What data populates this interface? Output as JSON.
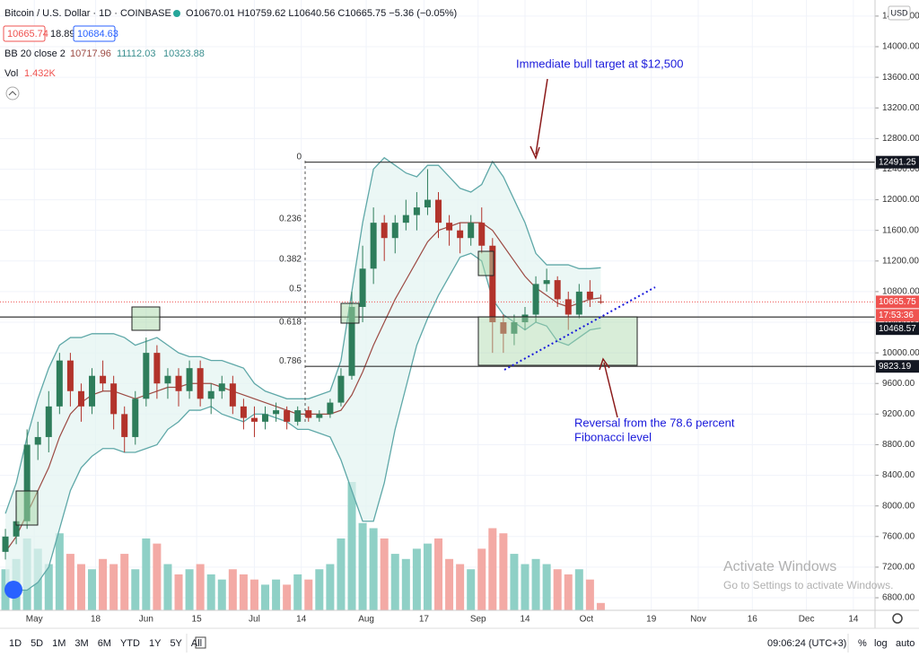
{
  "header": {
    "title": "Bitcoin / U.S. Dollar · 1D · COINBASE",
    "ohlc_text": "O10670.01 H10759.62 L10640.56 C10665.75 −5.36 (−0.05%)",
    "bid": 10665.74,
    "spread": 18.89,
    "ask": 10684.63
  },
  "chart_data": {
    "type": "candlestick",
    "currency": "USD",
    "x": [
      -8,
      -5,
      -2,
      1,
      4,
      7,
      10,
      13,
      16,
      19,
      22,
      25,
      28,
      31,
      34,
      37,
      40,
      43,
      46,
      49,
      52,
      55,
      58,
      61,
      64,
      67,
      70,
      73,
      76,
      79,
      82,
      85,
      88,
      91,
      94,
      97,
      100,
      103,
      106,
      109,
      112,
      115,
      118,
      121,
      124,
      127,
      130,
      133,
      136,
      139,
      142,
      145,
      148,
      151,
      154,
      157
    ],
    "xlim": [
      -9.5,
      233
    ],
    "xticks": [
      {
        "value": 0,
        "label": "May"
      },
      {
        "value": 17,
        "label": "18"
      },
      {
        "value": 31,
        "label": "Jun"
      },
      {
        "value": 45,
        "label": "15"
      },
      {
        "value": 61,
        "label": "Jul"
      },
      {
        "value": 74,
        "label": "14"
      },
      {
        "value": 92,
        "label": "Aug"
      },
      {
        "value": 108,
        "label": "17"
      },
      {
        "value": 123,
        "label": "Sep"
      },
      {
        "value": 136,
        "label": "14"
      },
      {
        "value": 153,
        "label": "Oct"
      },
      {
        "value": 171,
        "label": "19"
      },
      {
        "value": 184,
        "label": "Nov"
      },
      {
        "value": 199,
        "label": "16"
      },
      {
        "value": 214,
        "label": "Dec"
      },
      {
        "value": 227,
        "label": "14"
      }
    ],
    "ylim": [
      6636,
      14610
    ],
    "yticks": [
      {
        "value": 6800,
        "label": "6800.00"
      },
      {
        "value": 7200,
        "label": "7200.00"
      },
      {
        "value": 7600,
        "label": "7600.00"
      },
      {
        "value": 8000,
        "label": "8000.00"
      },
      {
        "value": 8400,
        "label": "8400.00"
      },
      {
        "value": 8800,
        "label": "8800.00"
      },
      {
        "value": 9200,
        "label": "9200.00"
      },
      {
        "value": 9600,
        "label": "9600.00"
      },
      {
        "value": 10000,
        "label": "10000.00"
      },
      {
        "value": 10400,
        "label": "10400.00"
      },
      {
        "value": 10800,
        "label": "10800.00"
      },
      {
        "value": 11200,
        "label": "11200.00"
      },
      {
        "value": 11600,
        "label": "11600.00"
      },
      {
        "value": 12000,
        "label": "12000.00"
      },
      {
        "value": 12400,
        "label": "12400.00"
      },
      {
        "value": 12800,
        "label": "12800.00"
      },
      {
        "value": 13200,
        "label": "13200.00"
      },
      {
        "value": 13600,
        "label": "13600.00"
      },
      {
        "value": 14000,
        "label": "14000.00"
      },
      {
        "value": 14400,
        "label": "14400.00"
      }
    ],
    "open": [
      7400,
      7600,
      7800,
      8800,
      8900,
      9300,
      9900,
      9500,
      9300,
      9700,
      9600,
      9200,
      8900,
      9400,
      10000,
      9600,
      9700,
      9500,
      9800,
      9400,
      9500,
      9600,
      9300,
      9150,
      9100,
      9200,
      9250,
      9100,
      9250,
      9150,
      9200,
      9350,
      9700,
      10600,
      11100,
      11700,
      11500,
      11700,
      11800,
      11900,
      12000,
      11700,
      11600,
      11500,
      11700,
      11400,
      10400,
      10250,
      10400,
      10500,
      10900,
      10950,
      10700,
      10500,
      10800,
      10670.01
    ],
    "high": [
      7700,
      8000,
      9000,
      9100,
      9500,
      10000,
      10000,
      9600,
      9800,
      9900,
      9700,
      9300,
      9500,
      10200,
      10100,
      9800,
      9800,
      9900,
      9900,
      9600,
      9700,
      9700,
      9400,
      9300,
      9300,
      9350,
      9300,
      9300,
      9300,
      9250,
      9400,
      9800,
      10800,
      11400,
      11900,
      11800,
      11800,
      12000,
      12100,
      12400,
      12100,
      11800,
      11700,
      11800,
      11900,
      11500,
      10500,
      10500,
      10600,
      11000,
      11100,
      11000,
      10800,
      10900,
      10950,
      10759.62
    ],
    "low": [
      7300,
      7500,
      7700,
      8600,
      8700,
      9200,
      9300,
      9100,
      9200,
      9500,
      9000,
      8700,
      8800,
      9300,
      9400,
      9400,
      9300,
      9400,
      9300,
      9200,
      9400,
      9200,
      9000,
      8900,
      9000,
      9100,
      9000,
      9050,
      9100,
      9100,
      9150,
      9300,
      9650,
      10400,
      10900,
      11200,
      11300,
      11600,
      11600,
      11800,
      11500,
      11400,
      11300,
      11400,
      11300,
      10000,
      10000,
      10100,
      10300,
      10400,
      10800,
      10600,
      10300,
      10450,
      10600,
      10640.56
    ],
    "close": [
      7600,
      7800,
      8800,
      8900,
      9300,
      9900,
      9500,
      9300,
      9700,
      9600,
      9200,
      8900,
      9400,
      10000,
      9600,
      9700,
      9500,
      9800,
      9400,
      9500,
      9600,
      9300,
      9150,
      9100,
      9200,
      9250,
      9100,
      9250,
      9150,
      9200,
      9350,
      9700,
      10600,
      11100,
      11700,
      11500,
      11700,
      11800,
      11900,
      12000,
      11700,
      11600,
      11500,
      11700,
      11400,
      10400,
      10250,
      10400,
      10500,
      10900,
      10950,
      10700,
      10500,
      10800,
      10700,
      10665.75
    ],
    "up_color": "#2e7d5b",
    "down_color": "#b2332b",
    "bands": {
      "name": "BB 20 close 2",
      "line_color": "#5fa8a8",
      "mid_color": "#9c4a43",
      "fill_color": "#e3f3f1",
      "upper": [
        7900,
        8300,
        8900,
        9400,
        9800,
        10100,
        10200,
        10200,
        10250,
        10250,
        10250,
        10200,
        10100,
        10150,
        10200,
        10100,
        10000,
        9950,
        9950,
        9900,
        9900,
        9850,
        9800,
        9600,
        9500,
        9450,
        9400,
        9400,
        9400,
        9450,
        9500,
        9900,
        10800,
        11700,
        12400,
        12550,
        12450,
        12350,
        12300,
        12450,
        12450,
        12300,
        12150,
        12100,
        12200,
        12500,
        12300,
        12000,
        11700,
        11300,
        11150,
        11150,
        11150,
        11100,
        11100,
        11112.03
      ],
      "mid": [
        7400,
        7600,
        7900,
        8200,
        8500,
        8900,
        9200,
        9350,
        9450,
        9500,
        9500,
        9450,
        9400,
        9450,
        9500,
        9550,
        9550,
        9600,
        9600,
        9600,
        9550,
        9500,
        9450,
        9400,
        9350,
        9300,
        9250,
        9200,
        9200,
        9200,
        9200,
        9250,
        9450,
        9750,
        10100,
        10400,
        10700,
        10950,
        11200,
        11450,
        11600,
        11650,
        11700,
        11700,
        11700,
        11600,
        11400,
        11200,
        11000,
        10850,
        10750,
        10650,
        10600,
        10650,
        10700,
        10717.96
      ],
      "lower": [
        6900,
        6900,
        6900,
        7000,
        7200,
        7700,
        8200,
        8500,
        8650,
        8750,
        8750,
        8700,
        8700,
        8750,
        8800,
        9000,
        9100,
        9250,
        9250,
        9300,
        9200,
        9150,
        9100,
        9200,
        9200,
        9150,
        9100,
        9000,
        9000,
        8950,
        8900,
        8600,
        8200,
        7800,
        7800,
        8300,
        9000,
        9550,
        10100,
        10450,
        10750,
        11000,
        11250,
        11300,
        11200,
        10700,
        10500,
        10400,
        10300,
        10400,
        10350,
        10150,
        10100,
        10200,
        10300,
        10323.88
      ]
    },
    "volume": {
      "name": "Vol",
      "last_label": "1.432K",
      "up_color": "#8fd0c6",
      "down_color": "#f3aaa5",
      "values": [
        8,
        10,
        14,
        12,
        9,
        15,
        11,
        9,
        8,
        10,
        9,
        11,
        8,
        14,
        13,
        9,
        7,
        8,
        9,
        7,
        6,
        8,
        7,
        6,
        5,
        6,
        5,
        7,
        6,
        8,
        9,
        14,
        25,
        17,
        16,
        14,
        11,
        10,
        12,
        13,
        14,
        10,
        9,
        8,
        12,
        16,
        15,
        11,
        9,
        10,
        9,
        8,
        7,
        8,
        6,
        1.432
      ]
    },
    "fib_levels": [
      {
        "label": "0",
        "value": 12491.25,
        "line": true
      },
      {
        "label": "0.236",
        "value": 11678,
        "line": false
      },
      {
        "label": "0.382",
        "value": 11150,
        "line": false
      },
      {
        "label": "0.5",
        "value": 10764,
        "line": false
      },
      {
        "label": "0.618",
        "value": 10330,
        "line": false
      },
      {
        "label": "0.786",
        "value": 9823.19,
        "line": true
      }
    ],
    "support_level": 10468.57,
    "countdown": "17:53:36",
    "annotations": [
      "Immediate bull target at $12,500",
      "Reversal from the 78.6 percent",
      "Fibonacci level"
    ]
  },
  "toolbar": {
    "ranges": [
      "1D",
      "5D",
      "1M",
      "3M",
      "6M",
      "YTD",
      "1Y",
      "5Y",
      "All"
    ],
    "time": "09:06:24 (UTC+3)",
    "percent": "%",
    "log": "log",
    "auto": "auto"
  },
  "watermark": {
    "title": "Activate Windows",
    "text": "Go to Settings to activate Windows."
  }
}
